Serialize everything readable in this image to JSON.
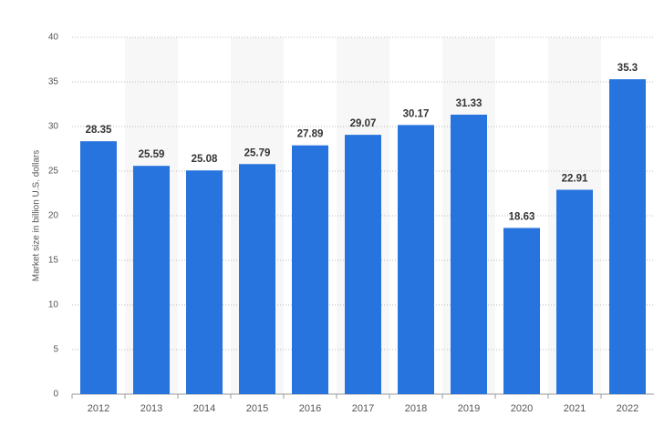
{
  "chart_data": {
    "type": "bar",
    "y_axis_label": "Market size in billion U.S. dollars",
    "categories": [
      "2012",
      "2013",
      "2014",
      "2015",
      "2016",
      "2017",
      "2018",
      "2019",
      "2020",
      "2021",
      "2022"
    ],
    "values": [
      28.35,
      25.59,
      25.08,
      25.79,
      27.89,
      29.07,
      30.17,
      31.33,
      18.63,
      22.91,
      35.3
    ],
    "color": "#2874de",
    "ylim": [
      0,
      40
    ],
    "yticks": [
      0,
      5,
      10,
      15,
      20,
      25,
      30,
      35,
      40
    ],
    "grid": true
  }
}
